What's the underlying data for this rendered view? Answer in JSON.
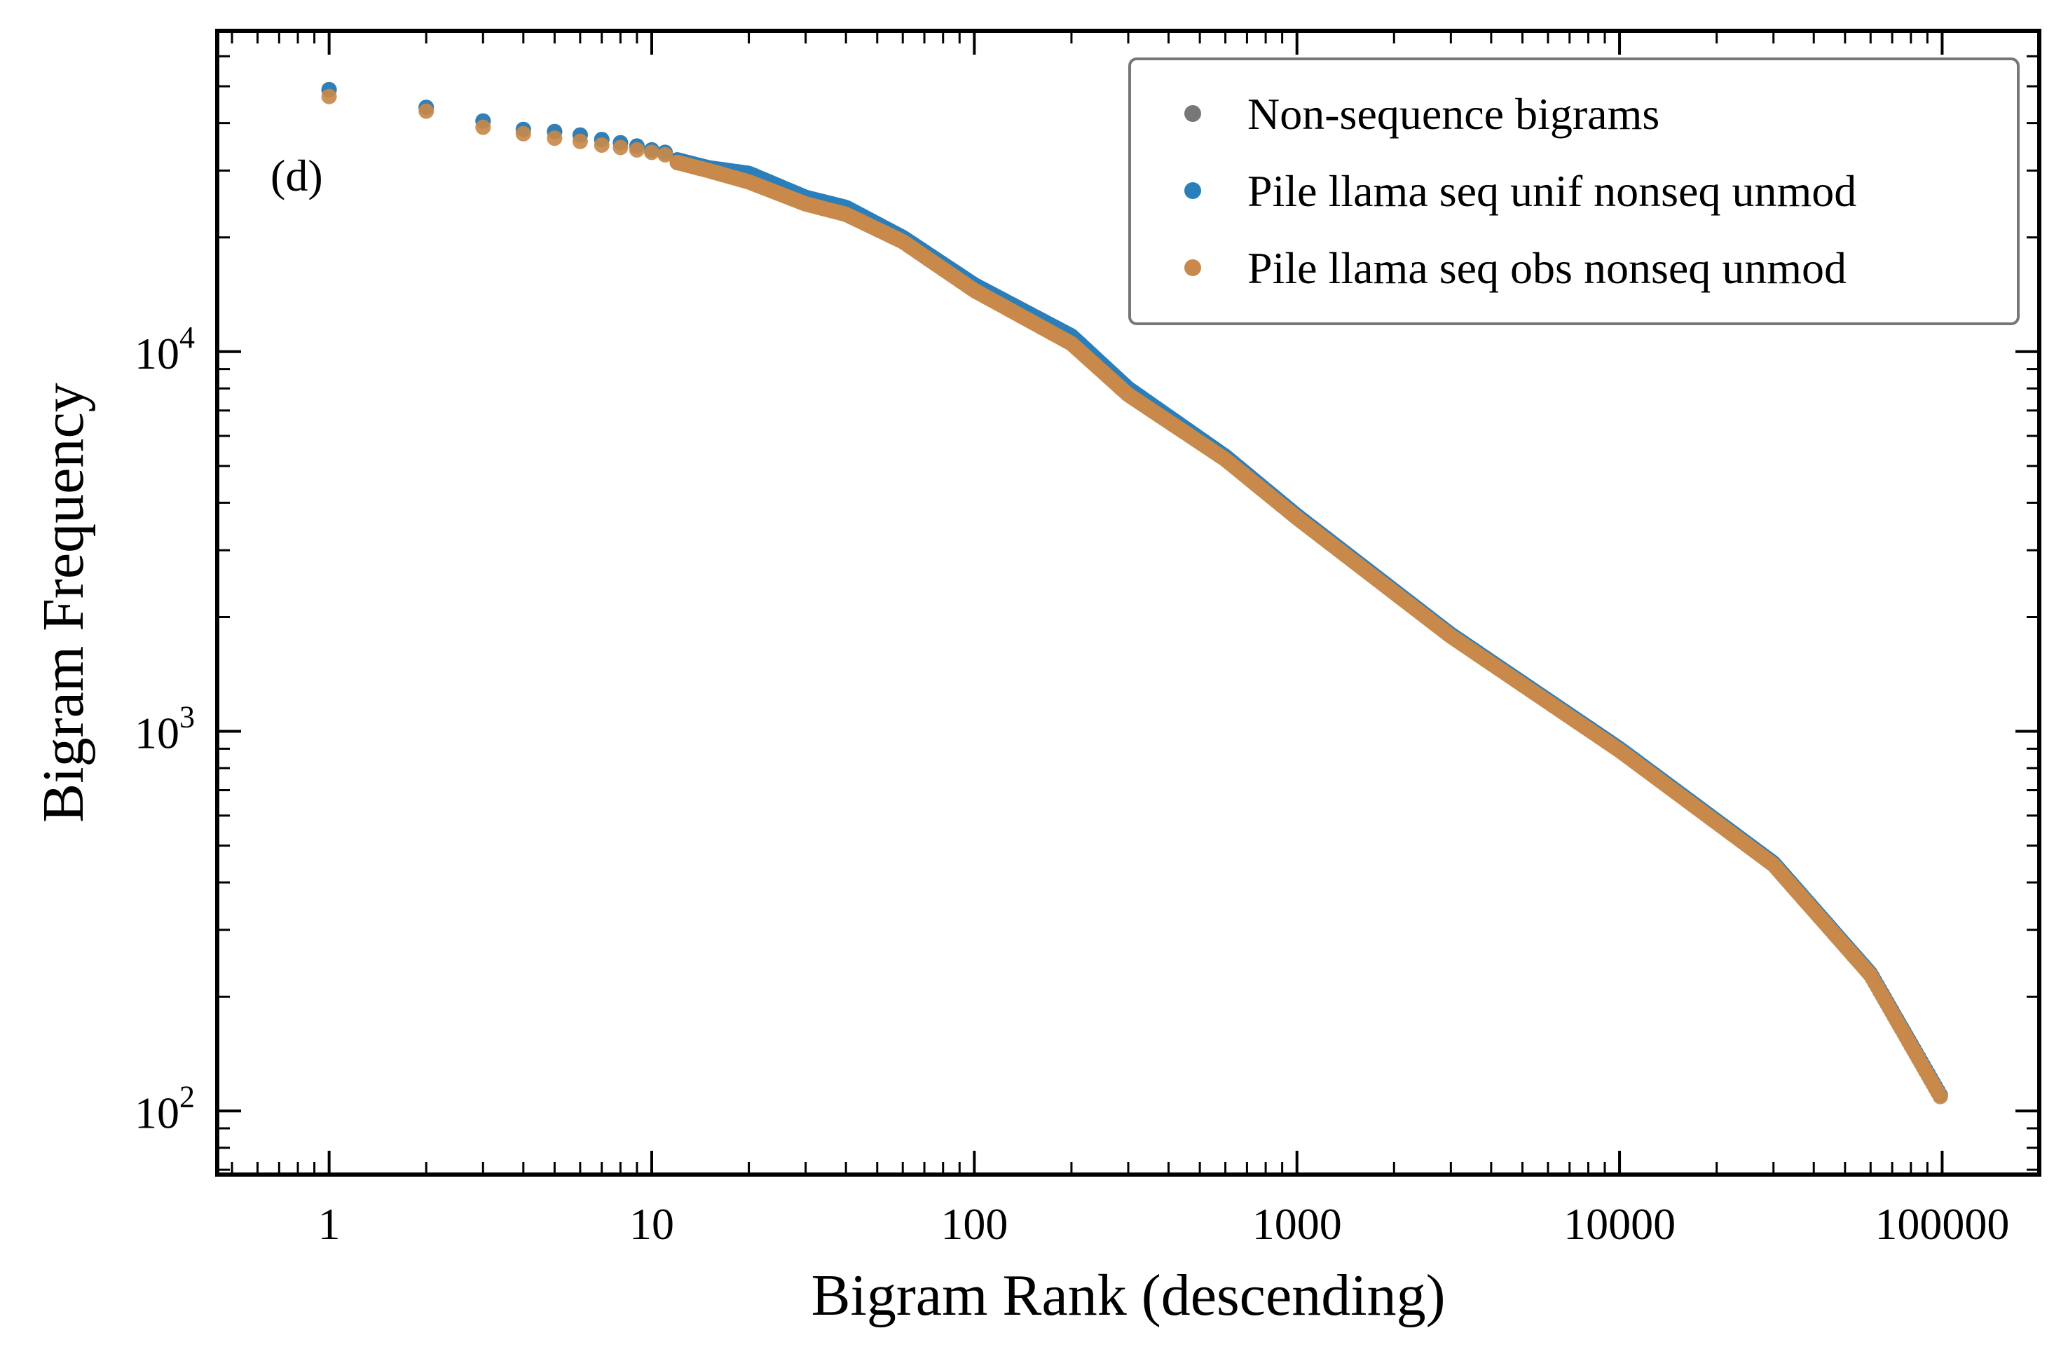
{
  "chart_data": {
    "type": "scatter",
    "panel_label": "(d)",
    "xlabel": "Bigram Rank (descending)",
    "ylabel": "Bigram Frequency",
    "xscale": "log",
    "yscale": "log",
    "xlim": [
      0.45,
      200000
    ],
    "ylim": [
      68,
      70000
    ],
    "grid": false,
    "legend_position": "top-right",
    "x_tick_labels": [
      "1",
      "10",
      "100",
      "1000",
      "10000",
      "100000"
    ],
    "x_ticks": [
      1,
      10,
      100,
      1000,
      10000,
      100000
    ],
    "y_ticks": [
      {
        "value": 100,
        "base": "10",
        "exp": "2"
      },
      {
        "value": 1000,
        "base": "10",
        "exp": "3"
      },
      {
        "value": 10000,
        "base": "10",
        "exp": "4"
      }
    ],
    "series": [
      {
        "name": "Non-sequence bigrams",
        "color": "#777777",
        "points": [
          [
            1,
            49000
          ],
          [
            2,
            44000
          ],
          [
            3,
            40500
          ],
          [
            4,
            38500
          ],
          [
            5,
            38000
          ],
          [
            6,
            37200
          ],
          [
            7,
            36200
          ],
          [
            8,
            35500
          ],
          [
            9,
            34800
          ],
          [
            10,
            34000
          ],
          [
            11,
            33500
          ],
          [
            12,
            32000
          ],
          [
            15,
            30500
          ],
          [
            20,
            29000
          ],
          [
            30,
            25500
          ],
          [
            40,
            23500
          ],
          [
            60,
            20000
          ],
          [
            100,
            15000
          ],
          [
            200,
            11000
          ],
          [
            300,
            8000
          ],
          [
            600,
            5300
          ],
          [
            1000,
            3700
          ],
          [
            3000,
            1800
          ],
          [
            10000,
            900
          ],
          [
            30000,
            450
          ],
          [
            60000,
            230
          ],
          [
            100000,
            108
          ]
        ]
      },
      {
        "name": "Pile llama seq unif nonseq unmod",
        "color": "#2a7fba",
        "points": [
          [
            1,
            49000
          ],
          [
            2,
            44000
          ],
          [
            3,
            40500
          ],
          [
            4,
            38500
          ],
          [
            5,
            38000
          ],
          [
            6,
            37200
          ],
          [
            7,
            36200
          ],
          [
            8,
            35500
          ],
          [
            9,
            34800
          ],
          [
            10,
            34000
          ],
          [
            11,
            33500
          ],
          [
            12,
            32000
          ],
          [
            15,
            30500
          ],
          [
            20,
            29500
          ],
          [
            30,
            25500
          ],
          [
            40,
            24000
          ],
          [
            60,
            20000
          ],
          [
            100,
            15000
          ],
          [
            200,
            11000
          ],
          [
            300,
            8000
          ],
          [
            600,
            5300
          ],
          [
            1000,
            3700
          ],
          [
            3000,
            1800
          ],
          [
            10000,
            900
          ],
          [
            30000,
            450
          ],
          [
            60000,
            230
          ],
          [
            100000,
            108
          ]
        ]
      },
      {
        "name": "Pile llama seq obs nonseq unmod",
        "color": "#c8894a",
        "points": [
          [
            1,
            47000
          ],
          [
            2,
            43000
          ],
          [
            3,
            39000
          ],
          [
            4,
            37500
          ],
          [
            5,
            36500
          ],
          [
            6,
            35800
          ],
          [
            7,
            35000
          ],
          [
            8,
            34500
          ],
          [
            9,
            34000
          ],
          [
            10,
            33500
          ],
          [
            11,
            33000
          ],
          [
            12,
            31500
          ],
          [
            15,
            30000
          ],
          [
            20,
            28000
          ],
          [
            30,
            24500
          ],
          [
            40,
            23000
          ],
          [
            60,
            19500
          ],
          [
            100,
            14500
          ],
          [
            200,
            10500
          ],
          [
            300,
            7700
          ],
          [
            600,
            5200
          ],
          [
            1000,
            3650
          ],
          [
            3000,
            1780
          ],
          [
            10000,
            890
          ],
          [
            30000,
            445
          ],
          [
            60000,
            228
          ],
          [
            100000,
            107
          ]
        ]
      }
    ]
  }
}
